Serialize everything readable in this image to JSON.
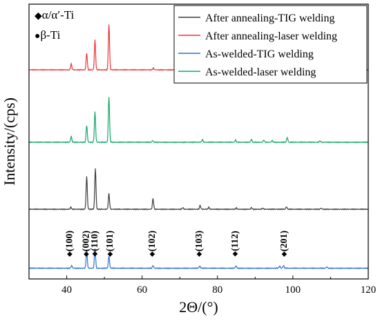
{
  "chart_data": {
    "type": "line",
    "xlabel": "2Θ/(°)",
    "ylabel": "Intensity/(cps)",
    "xlim": [
      30,
      120
    ],
    "x_ticks": [
      40,
      60,
      80,
      100,
      120
    ],
    "y_ticks_shown": false,
    "grid": false,
    "legend_position": "top-right",
    "phase_legend": [
      {
        "marker": "◆",
        "label": "α/α′-Ti"
      },
      {
        "marker": "●",
        "label": "β-Ti"
      }
    ],
    "series": [
      {
        "name": "After annealing-TIG welding",
        "color": "#3c3c3c",
        "baseline": 0.22,
        "peaks": [
          [
            41.1,
            0.008
          ],
          [
            45.3,
            0.122
          ],
          [
            47.6,
            0.153
          ],
          [
            51.2,
            0.058
          ],
          [
            62.9,
            0.04
          ],
          [
            70.8,
            0.006
          ],
          [
            75.4,
            0.014
          ],
          [
            77.7,
            0.007
          ],
          [
            85.0,
            0.005
          ],
          [
            89.0,
            0.006
          ],
          [
            92.0,
            0.004
          ],
          [
            98.3,
            0.009
          ],
          [
            107.5,
            0.004
          ]
        ]
      },
      {
        "name": "After annealing-laser welding",
        "color": "#ee3333",
        "baseline": 0.74,
        "peaks": [
          [
            41.2,
            0.022
          ],
          [
            45.3,
            0.062
          ],
          [
            47.5,
            0.112
          ],
          [
            51.2,
            0.17
          ],
          [
            63.0,
            0.007
          ],
          [
            76.2,
            0.01
          ],
          [
            85.0,
            0.009
          ],
          [
            89.2,
            0.013
          ],
          [
            92.2,
            0.009
          ],
          [
            94.5,
            0.006
          ],
          [
            98.7,
            0.012
          ],
          [
            107.4,
            0.006
          ]
        ]
      },
      {
        "name": "As-welded-TIG welding",
        "color": "#2f6fd6",
        "baseline": 0.0,
        "peaks": [
          [
            41.3,
            0.01
          ],
          [
            45.3,
            0.065
          ],
          [
            47.5,
            0.075
          ],
          [
            51.2,
            0.045
          ],
          [
            62.9,
            0.01
          ],
          [
            75.3,
            0.008
          ],
          [
            84.9,
            0.009
          ],
          [
            96.5,
            0.008
          ],
          [
            97.5,
            0.01
          ],
          [
            109.0,
            0.005
          ]
        ]
      },
      {
        "name": "As-welded-laser welding",
        "color": "#0fa86a",
        "baseline": 0.47,
        "peaks": [
          [
            41.2,
            0.022
          ],
          [
            45.3,
            0.063
          ],
          [
            47.5,
            0.113
          ],
          [
            51.2,
            0.17
          ],
          [
            62.8,
            0.006
          ],
          [
            76.0,
            0.01
          ],
          [
            84.8,
            0.008
          ],
          [
            89.0,
            0.011
          ],
          [
            92.3,
            0.008
          ],
          [
            94.5,
            0.006
          ],
          [
            98.5,
            0.018
          ],
          [
            107.2,
            0.005
          ]
        ]
      }
    ],
    "annotations": [
      {
        "label": "(100)",
        "x": 40.9
      },
      {
        "label": "(002)",
        "x": 45.3
      },
      {
        "label": "(110)",
        "x": 47.6
      },
      {
        "label": "(101)",
        "x": 51.6
      },
      {
        "label": "(102)",
        "x": 62.8
      },
      {
        "label": "(103)",
        "x": 75.3
      },
      {
        "label": "(112)",
        "x": 84.8
      },
      {
        "label": "(201)",
        "x": 97.8
      }
    ]
  }
}
